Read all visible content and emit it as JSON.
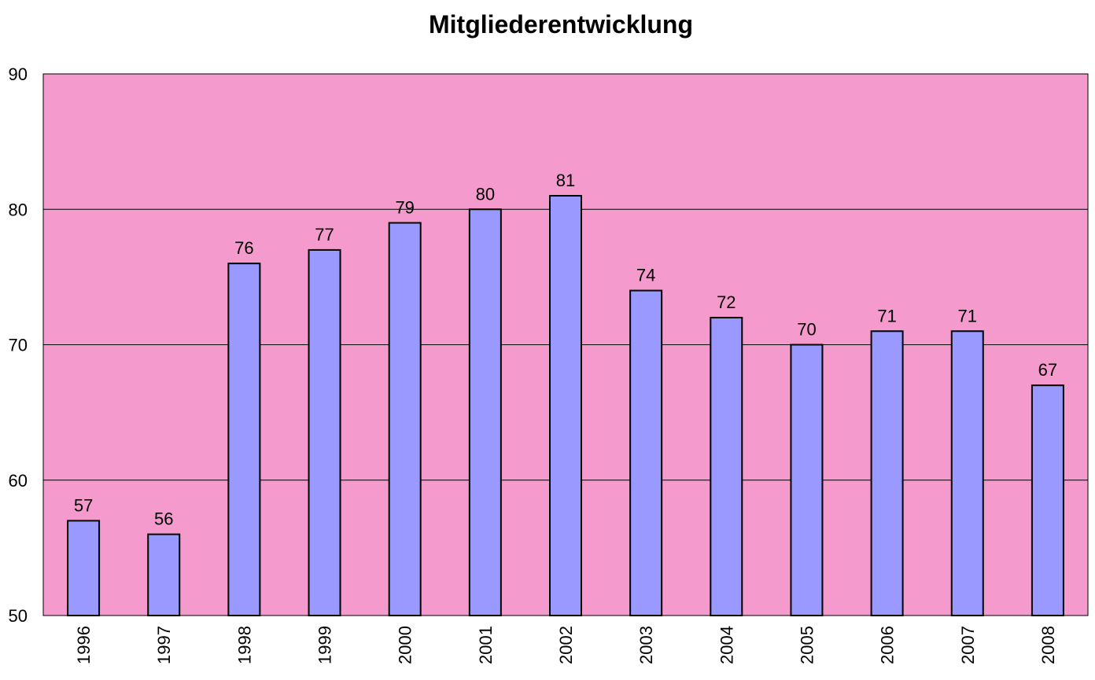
{
  "chart_data": {
    "type": "bar",
    "title": "Mitgliederentwicklung",
    "xlabel": "",
    "ylabel": "",
    "categories": [
      "1996",
      "1997",
      "1998",
      "1999",
      "2000",
      "2001",
      "2002",
      "2003",
      "2004",
      "2005",
      "2006",
      "2007",
      "2008"
    ],
    "values": [
      57,
      56,
      76,
      77,
      79,
      80,
      81,
      74,
      72,
      70,
      71,
      71,
      67
    ],
    "data_labels": [
      "57",
      "56",
      "76",
      "77",
      "79",
      "80",
      "81",
      "74",
      "72",
      "70",
      "71",
      "71",
      "67"
    ],
    "ylim": [
      50,
      90
    ],
    "yticks": [
      50,
      60,
      70,
      80,
      90
    ],
    "ytick_labels": [
      "50",
      "60",
      "70",
      "80",
      "90"
    ],
    "grid": true,
    "legend": "none",
    "x_tick_label_rotation": "vertical",
    "colors": {
      "plot_background": "#f49acc",
      "bar_fill": "#9999ff",
      "bar_stroke": "#000000",
      "gridline": "#000000",
      "text": "#000000"
    }
  }
}
